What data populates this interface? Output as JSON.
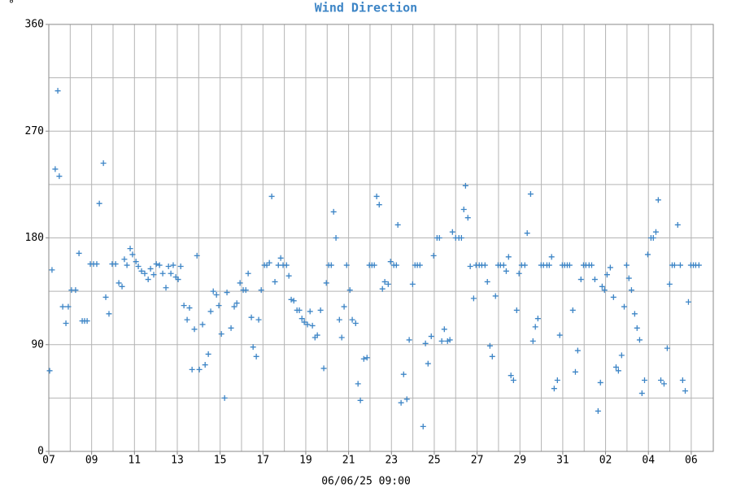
{
  "chart_data": {
    "type": "scatter",
    "title": "Wind Direction",
    "y_label": "°",
    "x_label": "06/06/25 09:00",
    "color": "#3d85c6",
    "marker": "+",
    "grid": true,
    "xlim": [
      0,
      31.03
    ],
    "xticks": [
      {
        "value": 0,
        "label": "07"
      },
      {
        "value": 2,
        "label": "09"
      },
      {
        "value": 4,
        "label": "11"
      },
      {
        "value": 6,
        "label": "13"
      },
      {
        "value": 8,
        "label": "15"
      },
      {
        "value": 10,
        "label": "17"
      },
      {
        "value": 12,
        "label": "19"
      },
      {
        "value": 14,
        "label": "21"
      },
      {
        "value": 16,
        "label": "23"
      },
      {
        "value": 18,
        "label": "25"
      },
      {
        "value": 20,
        "label": "27"
      },
      {
        "value": 22,
        "label": "29"
      },
      {
        "value": 24,
        "label": "31"
      },
      {
        "value": 26,
        "label": "02"
      },
      {
        "value": 28,
        "label": "04"
      },
      {
        "value": 30,
        "label": "06"
      }
    ],
    "x_minor_ticks": [
      1,
      3,
      5,
      7,
      9,
      11,
      13,
      15,
      17,
      19,
      21,
      23,
      25,
      27,
      29
    ],
    "ylim": [
      0,
      360
    ],
    "yticks": [
      0,
      90,
      180,
      270,
      360
    ],
    "y_minor_ticks": [
      45,
      135,
      225,
      315
    ],
    "x": [
      0.04,
      0.15,
      0.3,
      0.42,
      0.49,
      0.65,
      0.8,
      0.91,
      1.06,
      1.25,
      1.41,
      1.56,
      1.67,
      1.79,
      1.94,
      2.09,
      2.24,
      2.36,
      2.55,
      2.66,
      2.81,
      2.96,
      3.12,
      3.27,
      3.42,
      3.53,
      3.65,
      3.8,
      3.91,
      4.07,
      4.18,
      4.33,
      4.48,
      4.64,
      4.75,
      4.9,
      5.02,
      5.17,
      5.32,
      5.47,
      5.59,
      5.7,
      5.81,
      5.93,
      6.04,
      6.16,
      6.31,
      6.46,
      6.57,
      6.69,
      6.8,
      6.92,
      7.03,
      7.18,
      7.3,
      7.45,
      7.56,
      7.68,
      7.83,
      7.94,
      8.06,
      8.21,
      8.32,
      8.51,
      8.66,
      8.78,
      8.93,
      9.08,
      9.2,
      9.31,
      9.46,
      9.54,
      9.69,
      9.8,
      9.92,
      10.07,
      10.18,
      10.3,
      10.41,
      10.56,
      10.72,
      10.83,
      10.94,
      11.1,
      11.21,
      11.32,
      11.44,
      11.59,
      11.7,
      11.82,
      11.93,
      12.08,
      12.2,
      12.31,
      12.43,
      12.54,
      12.69,
      12.84,
      12.96,
      13.07,
      13.19,
      13.3,
      13.41,
      13.57,
      13.68,
      13.79,
      13.91,
      14.06,
      14.17,
      14.33,
      14.44,
      14.55,
      14.71,
      14.86,
      14.97,
      15.09,
      15.2,
      15.31,
      15.43,
      15.58,
      15.69,
      15.85,
      15.96,
      16.11,
      16.23,
      16.3,
      16.45,
      16.57,
      16.72,
      16.83,
      16.99,
      17.1,
      17.21,
      17.33,
      17.48,
      17.59,
      17.71,
      17.86,
      17.97,
      18.13,
      18.24,
      18.35,
      18.47,
      18.62,
      18.73,
      18.85,
      19.0,
      19.15,
      19.27,
      19.38,
      19.46,
      19.57,
      19.68,
      19.84,
      19.95,
      20.1,
      20.22,
      20.37,
      20.48,
      20.6,
      20.71,
      20.86,
      20.98,
      21.09,
      21.24,
      21.36,
      21.47,
      21.58,
      21.7,
      21.85,
      21.96,
      22.08,
      22.23,
      22.34,
      22.5,
      22.61,
      22.72,
      22.84,
      22.99,
      23.1,
      23.26,
      23.37,
      23.48,
      23.6,
      23.75,
      23.86,
      23.98,
      24.09,
      24.21,
      24.32,
      24.47,
      24.59,
      24.7,
      24.85,
      24.97,
      25.08,
      25.23,
      25.35,
      25.5,
      25.65,
      25.76,
      25.84,
      25.95,
      26.07,
      26.22,
      26.37,
      26.49,
      26.6,
      26.75,
      26.87,
      26.98,
      27.09,
      27.21,
      27.36,
      27.47,
      27.59,
      27.7,
      27.82,
      27.97,
      28.12,
      28.23,
      28.35,
      28.46,
      28.58,
      28.73,
      28.88,
      28.99,
      29.11,
      29.22,
      29.37,
      29.49,
      29.6,
      29.72,
      29.87,
      29.98,
      30.1,
      30.21,
      30.36
    ],
    "values": [
      68,
      153,
      238,
      304,
      232,
      122,
      108,
      122,
      136,
      136,
      167,
      110,
      110,
      110,
      158,
      158,
      158,
      209,
      243,
      130,
      116,
      158,
      158,
      142,
      139,
      162,
      157,
      171,
      166,
      160,
      156,
      152,
      150,
      145,
      154,
      149,
      158,
      157,
      150,
      138,
      156,
      150,
      157,
      147,
      145,
      156,
      123,
      111,
      121,
      69,
      103,
      165,
      69,
      107,
      73,
      82,
      118,
      135,
      132,
      123,
      99,
      45,
      134,
      104,
      122,
      125,
      142,
      136,
      136,
      150,
      113,
      88,
      80,
      111,
      136,
      157,
      157,
      159,
      215,
      143,
      157,
      163,
      157,
      157,
      148,
      128,
      127,
      119,
      119,
      112,
      109,
      107,
      118,
      106,
      96,
      98,
      119,
      70,
      142,
      157,
      157,
      202,
      180,
      111,
      96,
      122,
      157,
      136,
      111,
      108,
      57,
      43,
      78,
      79,
      157,
      157,
      157,
      215,
      208,
      137,
      143,
      141,
      160,
      157,
      157,
      191,
      41,
      65,
      44,
      94,
      141,
      157,
      157,
      157,
      21,
      91,
      74,
      97,
      165,
      180,
      180,
      93,
      103,
      93,
      94,
      185,
      180,
      180,
      180,
      204,
      224,
      197,
      156,
      129,
      157,
      157,
      157,
      157,
      143,
      89,
      80,
      131,
      157,
      157,
      157,
      152,
      164,
      64,
      60,
      119,
      150,
      157,
      157,
      184,
      217,
      93,
      105,
      112,
      157,
      157,
      157,
      157,
      164,
      53,
      60,
      98,
      157,
      157,
      157,
      157,
      119,
      67,
      85,
      145,
      157,
      157,
      157,
      157,
      145,
      34,
      58,
      139,
      136,
      149,
      155,
      130,
      71,
      68,
      81,
      122,
      157,
      146,
      136,
      116,
      104,
      94,
      49,
      60,
      166,
      180,
      180,
      185,
      212,
      60,
      57,
      87,
      141,
      157,
      157,
      191,
      157,
      60,
      51,
      126,
      157,
      157,
      157,
      157
    ]
  }
}
